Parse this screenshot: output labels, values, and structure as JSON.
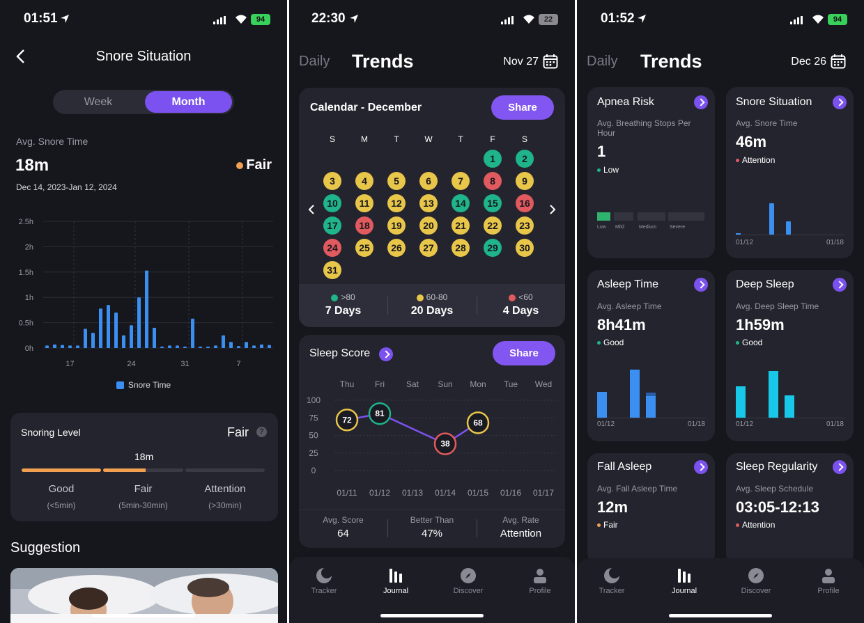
{
  "colors": {
    "bg": "#16161d",
    "card": "#24242e",
    "accent": "#8256f0",
    "bar": "#3b8ff0",
    "cyan": "#18c8e8",
    "good": "#1fb489",
    "fair": "#e8c64a",
    "bad": "#e05a5f",
    "orange": "#f0a050"
  },
  "p1": {
    "status": {
      "time": "01:51",
      "battery": "94"
    },
    "title": "Snore Situation",
    "seg": {
      "week": "Week",
      "month": "Month"
    },
    "avg_label": "Avg. Snore Time",
    "avg_value": "18m",
    "rating": "Fair",
    "range": "Dec 14, 2023-Jan 12, 2024",
    "legend": "Snore Time",
    "level": {
      "title": "Snoring Level",
      "rating": "Fair",
      "marker": "18m",
      "good": "Good",
      "good_range": "(<5min)",
      "fair": "Fair",
      "fair_range": "(5min-30min)",
      "attention": "Attention",
      "attention_range": "(>30min)",
      "position": 0.53
    },
    "suggestion": "Suggestion"
  },
  "p2": {
    "status": {
      "time": "22:30",
      "battery": "22"
    },
    "tabs": {
      "daily": "Daily",
      "trends": "Trends"
    },
    "date": "Nov 27",
    "calendar": {
      "title": "Calendar - December",
      "share": "Share",
      "weekdays": [
        "S",
        "M",
        "T",
        "W",
        "T",
        "F",
        "S"
      ],
      "days": [
        {
          "d": "1",
          "c": "g"
        },
        {
          "d": "2",
          "c": "g"
        },
        {
          "d": "3",
          "c": "y"
        },
        {
          "d": "4",
          "c": "y"
        },
        {
          "d": "5",
          "c": "y"
        },
        {
          "d": "6",
          "c": "y"
        },
        {
          "d": "7",
          "c": "y"
        },
        {
          "d": "8",
          "c": "r"
        },
        {
          "d": "9",
          "c": "y"
        },
        {
          "d": "10",
          "c": "g"
        },
        {
          "d": "11",
          "c": "y"
        },
        {
          "d": "12",
          "c": "y"
        },
        {
          "d": "13",
          "c": "y"
        },
        {
          "d": "14",
          "c": "g"
        },
        {
          "d": "15",
          "c": "g"
        },
        {
          "d": "16",
          "c": "r"
        },
        {
          "d": "17",
          "c": "g"
        },
        {
          "d": "18",
          "c": "r"
        },
        {
          "d": "19",
          "c": "y"
        },
        {
          "d": "20",
          "c": "y"
        },
        {
          "d": "21",
          "c": "y"
        },
        {
          "d": "22",
          "c": "y"
        },
        {
          "d": "23",
          "c": "y"
        },
        {
          "d": "24",
          "c": "r"
        },
        {
          "d": "25",
          "c": "y"
        },
        {
          "d": "26",
          "c": "y"
        },
        {
          "d": "27",
          "c": "y"
        },
        {
          "d": "28",
          "c": "y"
        },
        {
          "d": "29",
          "c": "g"
        },
        {
          "d": "30",
          "c": "y"
        },
        {
          "d": "31",
          "c": "y"
        }
      ],
      "summary": [
        {
          "label": ">80",
          "value": "7 Days",
          "c": "g"
        },
        {
          "label": "60-80",
          "value": "20 Days",
          "c": "y"
        },
        {
          "label": "<60",
          "value": "4 Days",
          "c": "r"
        }
      ]
    },
    "score": {
      "title": "Sleep Score",
      "share": "Share",
      "days": [
        "Thu",
        "Fri",
        "Sat",
        "Sun",
        "Mon",
        "Tue",
        "Wed"
      ],
      "dates": [
        "01/11",
        "01/12",
        "01/13",
        "01/14",
        "01/15",
        "01/16",
        "01/17"
      ],
      "yticks": [
        "100",
        "75",
        "50",
        "25",
        "0"
      ],
      "stats": [
        {
          "label": "Avg. Score",
          "value": "64"
        },
        {
          "label": "Better Than",
          "value": "47%"
        },
        {
          "label": "Avg. Rate",
          "value": "Attention"
        }
      ]
    },
    "nav": [
      "Tracker",
      "Journal",
      "Discover",
      "Profile"
    ]
  },
  "p3": {
    "status": {
      "time": "01:52",
      "battery": "94"
    },
    "tabs": {
      "daily": "Daily",
      "trends": "Trends"
    },
    "date": "Dec 26",
    "cards": {
      "apnea": {
        "title": "Apnea Risk",
        "sub": "Avg. Breathing Stops Per Hour",
        "value": "1",
        "status": "Low",
        "levels": [
          "Low",
          "Mild",
          "Medium",
          "Severe"
        ]
      },
      "snore": {
        "title": "Snore Situation",
        "sub": "Avg. Snore Time",
        "value": "46m",
        "status": "Attention",
        "d0": "01/12",
        "d1": "01/18"
      },
      "asleep": {
        "title": "Asleep Time",
        "sub": "Avg. Asleep Time",
        "value": "8h41m",
        "status": "Good",
        "d0": "01/12",
        "d1": "01/18"
      },
      "deep": {
        "title": "Deep Sleep",
        "sub": "Avg. Deep Sleep Time",
        "value": "1h59m",
        "status": "Good",
        "d0": "01/12",
        "d1": "01/18"
      },
      "fall": {
        "title": "Fall Asleep",
        "sub": "Avg. Fall Asleep Time",
        "value": "12m",
        "status": "Fair"
      },
      "regularity": {
        "title": "Sleep Regularity",
        "sub": "Avg. Sleep Schedule",
        "value": "03:05-12:13",
        "status": "Attention"
      }
    },
    "nav": [
      "Tracker",
      "Journal",
      "Discover",
      "Profile"
    ]
  },
  "chart_data": [
    {
      "type": "bar",
      "title": "",
      "series": [
        {
          "name": "Snore Time",
          "values": [
            0.05,
            0.07,
            0.06,
            0.05,
            0.05,
            0.38,
            0.3,
            0.78,
            0.85,
            0.7,
            0.25,
            0.45,
            1.0,
            1.53,
            0.4,
            0.03,
            0.05,
            0.05,
            0.03,
            0.58,
            0.03,
            0.03,
            0.05,
            0.25,
            0.12,
            0.04,
            0.12,
            0.05,
            0.07,
            0.06
          ]
        }
      ],
      "xticks": [
        "17",
        "24",
        "31",
        "7"
      ],
      "yticks": [
        "0h",
        "0.5h",
        "1h",
        "1.5h",
        "2h",
        "2.5h"
      ],
      "ylim": [
        0,
        2.5
      ]
    },
    {
      "type": "line",
      "title": "Sleep Score",
      "categories": [
        "01/11",
        "01/12",
        "01/13",
        "01/14",
        "01/15",
        "01/16",
        "01/17"
      ],
      "series": [
        {
          "values": [
            72,
            81,
            null,
            38,
            68,
            null,
            null
          ]
        }
      ],
      "ylim": [
        0,
        100
      ]
    }
  ]
}
